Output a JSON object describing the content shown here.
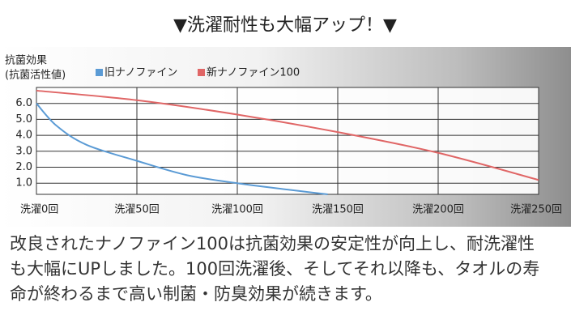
{
  "chart_data": {
    "type": "line",
    "title": "▼洗濯耐性も大幅アップ！▼",
    "y_label": [
      "抗菌効果",
      "(抗菌活性値)"
    ],
    "series": [
      {
        "name": "旧ナノファイン",
        "color": "#5b9bd5",
        "x": [
          0,
          10,
          25,
          50,
          75,
          100,
          125,
          145
        ],
        "values": [
          6.0,
          4.6,
          3.4,
          2.4,
          1.5,
          1.0,
          0.6,
          0.3
        ]
      },
      {
        "name": "新ナノファイン100",
        "color": "#e06666",
        "x": [
          0,
          50,
          100,
          150,
          200,
          250
        ],
        "values": [
          6.8,
          6.2,
          5.3,
          4.2,
          2.9,
          1.2
        ]
      }
    ],
    "xlim": [
      0,
      250
    ],
    "xticks": [
      {
        "value": 0,
        "label": "洗濯0回"
      },
      {
        "value": 50,
        "label": "洗濯50回"
      },
      {
        "value": 100,
        "label": "洗濯100回"
      },
      {
        "value": 150,
        "label": "洗濯150回"
      },
      {
        "value": 200,
        "label": "洗濯200回"
      },
      {
        "value": 250,
        "label": "洗濯250回"
      }
    ],
    "ylim": [
      0.3,
      7.0
    ],
    "yticks": [
      {
        "value": 1,
        "label": "1.0"
      },
      {
        "value": 2,
        "label": "2.0"
      },
      {
        "value": 3,
        "label": "3.0"
      },
      {
        "value": 4,
        "label": "4.0"
      },
      {
        "value": 5,
        "label": "5.0"
      },
      {
        "value": 6,
        "label": "6.0"
      }
    ],
    "grid": true
  },
  "body_text": [
    "改良されたナノファイン100は抗菌効果の安定性が向上し、耐洗濯性",
    "も大幅にUPしました。100回洗濯後、そしてそれ以降も、タオルの寿",
    "命が終わるまで高い制菌・防臭効果が続きます。"
  ]
}
